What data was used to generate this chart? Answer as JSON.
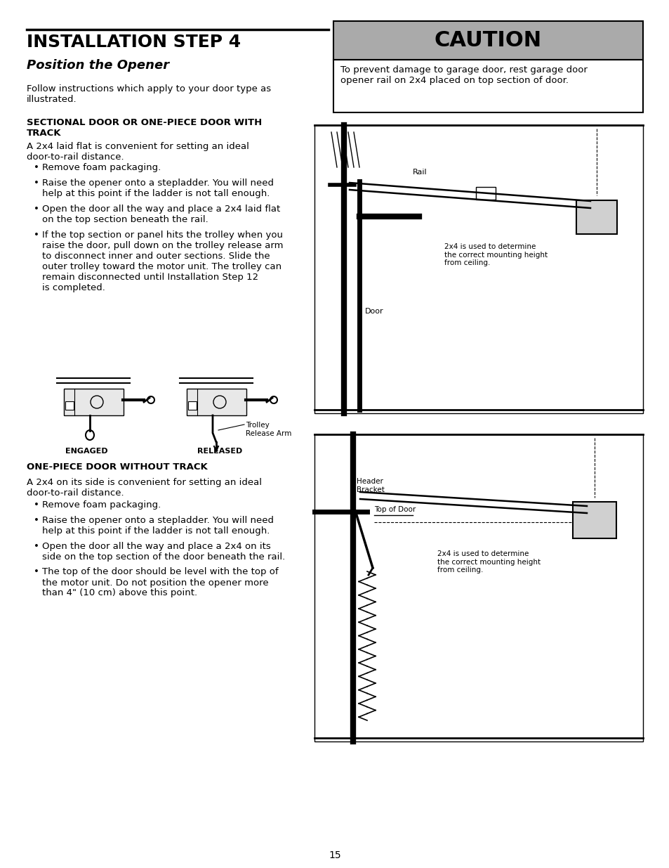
{
  "page_bg": "#ffffff",
  "page_num": "15",
  "title_text": "INSTALLATION STEP 4",
  "subtitle_text": "Position the Opener",
  "caution_header": "CAUTION",
  "caution_header_bg": "#aaaaaa",
  "caution_body": "To prevent damage to garage door, rest garage door\nopener rail on 2x4 placed on top section of door.",
  "intro_text": "Follow instructions which apply to your door type as\nillustrated.",
  "section1_title": "SECTIONAL DOOR OR ONE-PIECE DOOR WITH\nTRACK",
  "section1_para": "A 2x4 laid flat is convenient for setting an ideal\ndoor-to-rail distance.",
  "section1_bullets": [
    "Remove foam packaging.",
    "Raise the opener onto a stepladder. You will need\nhelp at this point if the ladder is not tall enough.",
    "Open the door all the way and place a 2x4 laid flat\non the top section beneath the rail.",
    "If the top section or panel hits the trolley when you\nraise the door, pull down on the trolley release arm\nto disconnect inner and outer sections. Slide the\nouter trolley toward the motor unit. The trolley can\nremain disconnected until Installation Step 12\nis completed."
  ],
  "section2_title": "ONE-PIECE DOOR WITHOUT TRACK",
  "section2_para": "A 2x4 on its side is convenient for setting an ideal\ndoor-to-rail distance.",
  "section2_bullets": [
    "Remove foam packaging.",
    "Raise the opener onto a stepladder. You will need\nhelp at this point if the ladder is not tall enough.",
    "Open the door all the way and place a 2x4 on its\nside on the top section of the door beneath the rail.",
    "The top of the door should be level with the top of\nthe motor unit. Do not position the opener more\nthan 4\" (10 cm) above this point."
  ],
  "diag1_label_rail": "Rail",
  "diag1_label_door": "Door",
  "diag1_label_2x4": "2x4 is used to determine\nthe correct mounting height\nfrom ceiling.",
  "diag2_label_header": "Header\nBracket",
  "diag2_label_top": "Top of Door",
  "diag2_label_2x4": "2x4 is used to determine\nthe correct mounting height\nfrom ceiling.",
  "trolley_label_engaged": "ENGAGED",
  "trolley_label_released": "RELEASED",
  "trolley_label_arm": "Trolley\nRelease Arm"
}
